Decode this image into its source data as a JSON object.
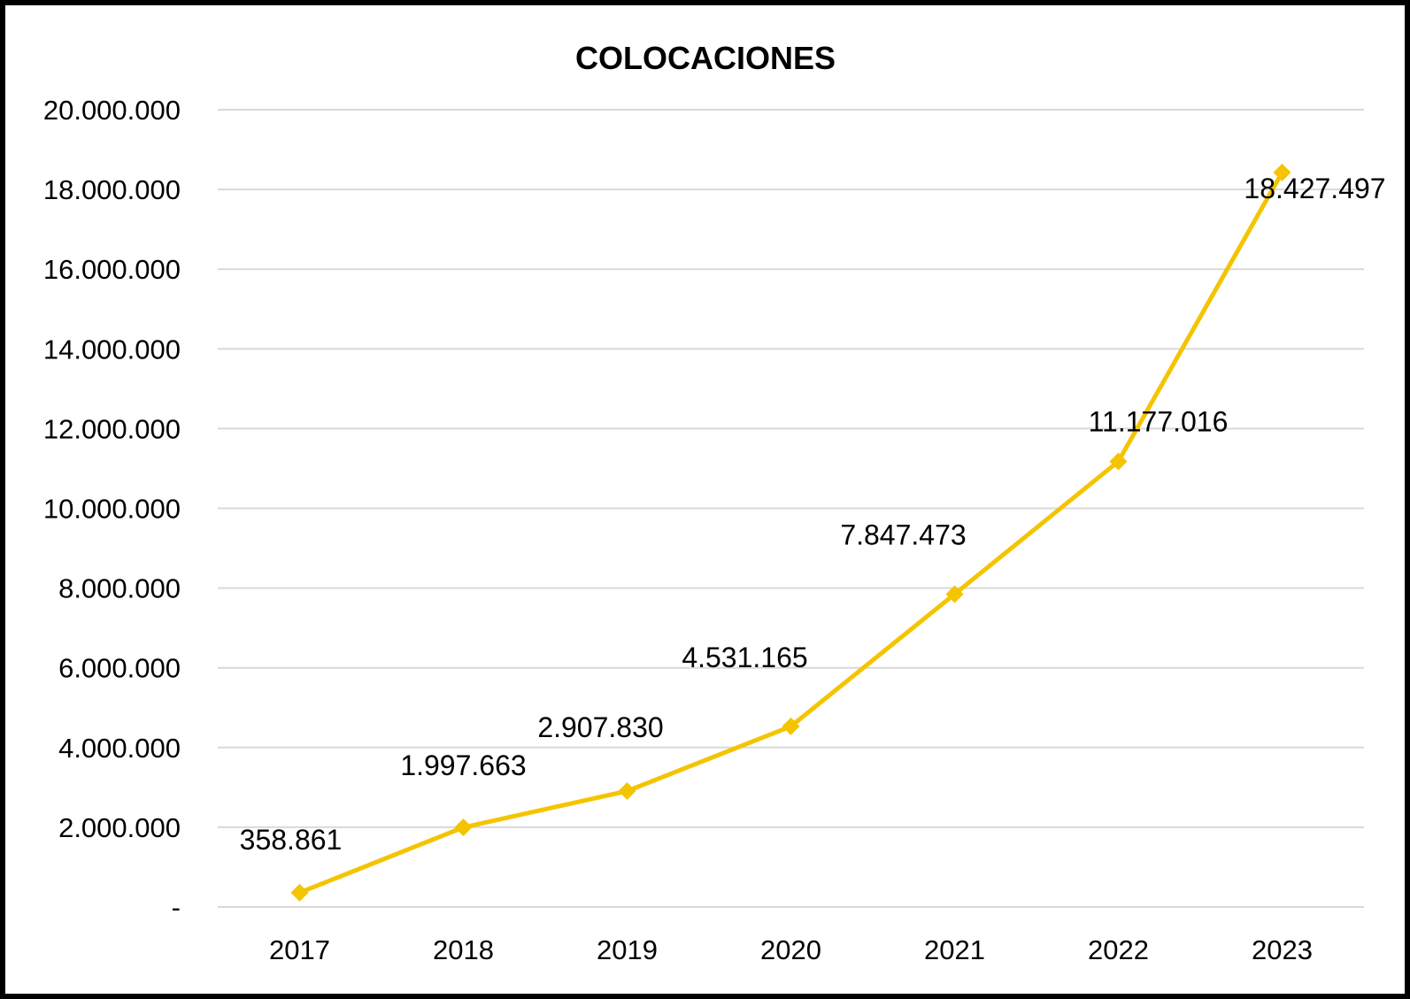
{
  "chart_data": {
    "type": "line",
    "title": "COLOCACIONES",
    "xlabel": "",
    "ylabel": "",
    "categories": [
      "2017",
      "2018",
      "2019",
      "2020",
      "2021",
      "2022",
      "2023"
    ],
    "series": [
      {
        "values": [
          358861,
          1997663,
          2907830,
          4531165,
          7847473,
          11177016,
          18427497
        ],
        "data_labels": [
          "358.861",
          "1.997.663",
          "2.907.830",
          "4.531.165",
          "7.847.473",
          "11.177.016",
          "18.427.497"
        ],
        "color": "#f5c400",
        "marker": "diamond"
      }
    ],
    "ylim": [
      0,
      20000000
    ],
    "yticks": [
      0,
      2000000,
      4000000,
      6000000,
      8000000,
      10000000,
      12000000,
      14000000,
      16000000,
      18000000,
      20000000
    ],
    "ytick_labels": [
      "-",
      "2.000.000",
      "4.000.000",
      "6.000.000",
      "8.000.000",
      "10.000.000",
      "12.000.000",
      "14.000.000",
      "16.000.000",
      "18.000.000",
      "20.000.000"
    ],
    "grid": true,
    "legend": "none"
  }
}
